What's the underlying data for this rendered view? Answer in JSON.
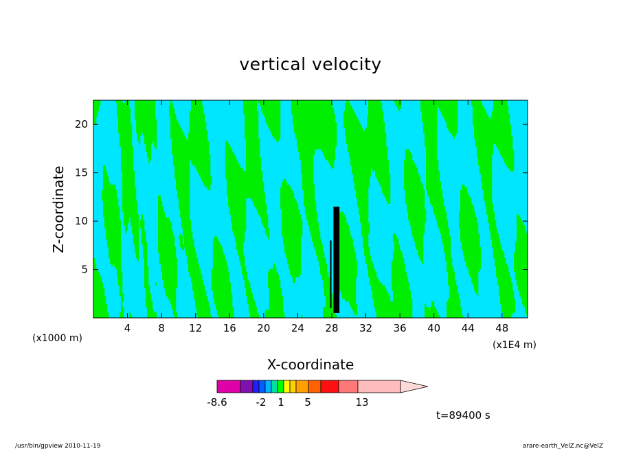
{
  "chart_data": {
    "type": "heatmap",
    "title": "vertical velocity",
    "xlabel": "X-coordinate",
    "ylabel": "Z-coordinate",
    "x_unit_left": "(x1000 m)",
    "x_unit_right": "(x1E4 m)",
    "xlim": [
      0,
      51
    ],
    "ylim": [
      0,
      22.5
    ],
    "x_ticks": [
      4,
      8,
      12,
      16,
      20,
      24,
      28,
      32,
      36,
      40,
      44,
      48
    ],
    "y_ticks": [
      5,
      10,
      15,
      20
    ],
    "colorbar": {
      "colors": [
        "#e000a8",
        "#8010b0",
        "#2020ff",
        "#0060ff",
        "#00b4ff",
        "#00e0a0",
        "#00ff00",
        "#ffff00",
        "#ffd000",
        "#ffa000",
        "#ff6000",
        "#ff1010",
        "#ff7878",
        "#ffbcbc",
        "#ffd8d8"
      ],
      "tick_labels": [
        "-8.6",
        "-2",
        "1",
        "5",
        "13"
      ]
    },
    "field_colors": {
      "negative": "#00e6ff",
      "positive": "#00ee00"
    },
    "time_label": "t=89400 s"
  },
  "footer": {
    "left": "/usr/bin/gpview   2010-11-19",
    "right": "arare-earth_VelZ.nc@VelZ"
  }
}
